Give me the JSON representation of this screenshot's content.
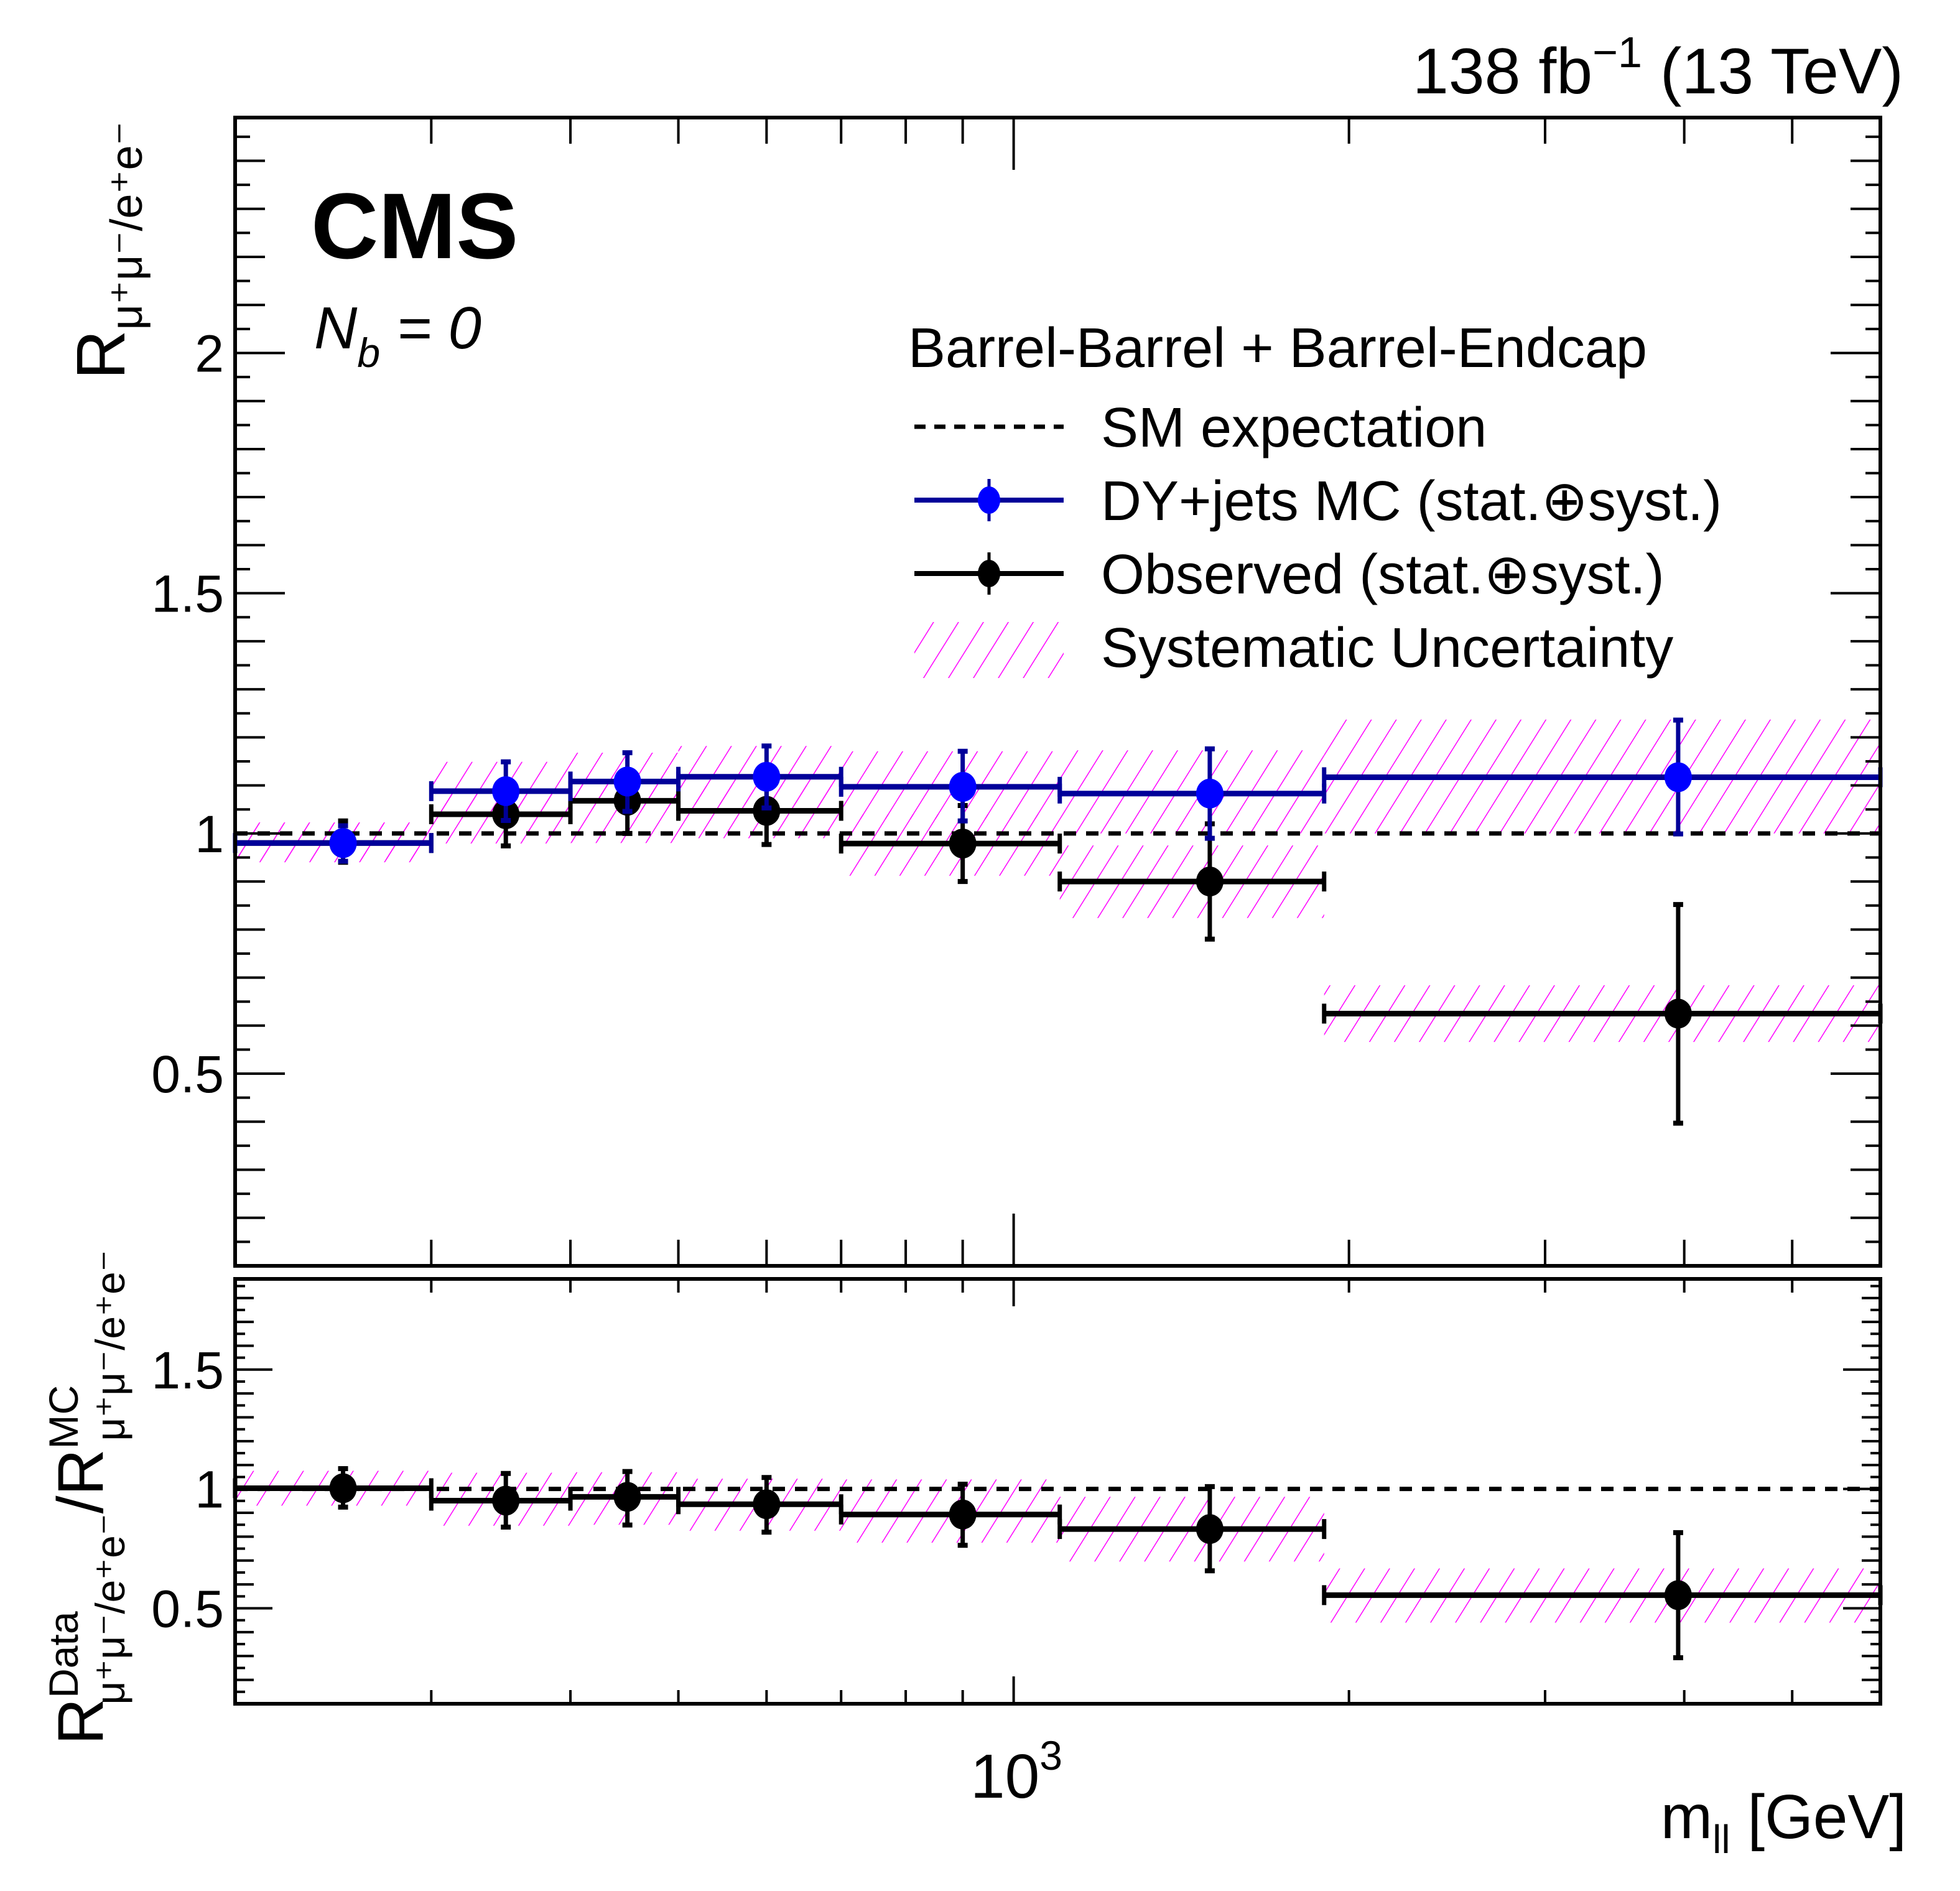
{
  "chart_data": {
    "type": "scatter",
    "title": "",
    "header_right": {
      "lumi": "138 fb",
      "lumi_exp": "−1",
      "energy": " (13 TeV)"
    },
    "experiment_label": "CMS",
    "selection_label": {
      "main": "N",
      "sub": "b",
      "rest": " = 0"
    },
    "xlabel": {
      "main": "m",
      "sub": "ll",
      "unit": " [GeV]"
    },
    "x_scale": "log",
    "xlim": [
      200,
      6000
    ],
    "x_major_tick_label": {
      "base": "10",
      "exp": "3",
      "value": 1000
    },
    "x_minor_ticks": [
      300,
      400,
      500,
      600,
      700,
      800,
      900,
      2000,
      3000,
      4000,
      5000
    ],
    "upper_panel": {
      "ylabel": {
        "main": "R",
        "sub": "μ⁺μ⁻/e⁺e⁻"
      },
      "ylim": [
        0.1,
        2.49
      ],
      "yticks": [
        0.5,
        1,
        1.5,
        2
      ],
      "ytick_labels": [
        "0.5",
        "1",
        "1.5",
        "2"
      ],
      "reference_line": 1.0
    },
    "lower_panel": {
      "ylabel": {
        "num_main": "R",
        "num_sup": "Data",
        "num_sub": "μ⁺μ⁻/e⁺e⁻",
        "den_main": "/R",
        "den_sup": "MC",
        "den_sub": "μ⁺μ⁻/e⁺e⁻"
      },
      "ylim": [
        0.1,
        1.88
      ],
      "yticks": [
        0.5,
        1,
        1.5
      ],
      "ytick_labels": [
        "0.5",
        "1",
        "1.5"
      ],
      "reference_line": 1.0
    },
    "legend": {
      "placement": "top-right",
      "header": "Barrel-Barrel + Barrel-Endcap",
      "entries": [
        {
          "key": "sm",
          "label": "SM expectation",
          "style": "dashed-line"
        },
        {
          "key": "mc",
          "label": "DY+jets MC (stat.⊕syst.)",
          "style": "marker-errorbar",
          "color": "#0000ff"
        },
        {
          "key": "data",
          "label": "Observed (stat.⊕syst.)",
          "style": "marker-errorbar",
          "color": "#000000"
        },
        {
          "key": "syst",
          "label": "Systematic Uncertainty",
          "style": "hatch",
          "color": "#ff00ff"
        }
      ]
    },
    "colors": {
      "mc_marker": "#0000ff",
      "mc_line": "#000099",
      "data": "#000000",
      "hatch": "#ff00ff",
      "sm_line": "#000000"
    },
    "bins": [
      {
        "lo": 200,
        "hi": 300,
        "center": 250
      },
      {
        "lo": 300,
        "hi": 400,
        "center": 350
      },
      {
        "lo": 400,
        "hi": 500,
        "center": 450
      },
      {
        "lo": 500,
        "hi": 700,
        "center": 600
      },
      {
        "lo": 700,
        "hi": 1100,
        "center": 900
      },
      {
        "lo": 1100,
        "hi": 1900,
        "center": 1500
      },
      {
        "lo": 1900,
        "hi": 6000,
        "center": 3950
      }
    ],
    "series": [
      {
        "name": "DY+jets MC (stat.⊕syst.)",
        "panel": "upper",
        "values": [
          0.98,
          1.088,
          1.108,
          1.118,
          1.097,
          1.083,
          1.117
        ],
        "err_up": [
          1.016,
          1.149,
          1.168,
          1.182,
          1.171,
          1.176,
          1.236
        ],
        "err_down": [
          0.942,
          1.027,
          1.046,
          1.053,
          1.026,
          0.99,
          0.999
        ],
        "syst_band_hi": [
          1.023,
          1.149,
          1.168,
          1.182,
          1.171,
          1.173,
          1.237
        ],
        "syst_band_lo": [
          0.94,
          1.03,
          1.05,
          1.06,
          1.03,
          1.0,
          1.0
        ]
      },
      {
        "name": "Observed (stat.⊕syst.)",
        "panel": "upper",
        "values": [
          0.98,
          1.04,
          1.068,
          1.047,
          0.979,
          0.9,
          0.625
        ],
        "err_up": [
          1.026,
          1.09,
          1.13,
          1.11,
          1.058,
          1.02,
          0.852
        ],
        "err_down": [
          0.94,
          0.974,
          1.0,
          0.977,
          0.9,
          0.78,
          0.397
        ],
        "syst_band_hi": [
          1.02,
          1.09,
          1.12,
          1.1,
          1.04,
          0.975,
          0.684
        ],
        "syst_band_lo": [
          0.945,
          0.979,
          0.98,
          0.99,
          0.912,
          0.824,
          0.566
        ]
      },
      {
        "name": "Data/MC ratio",
        "panel": "lower",
        "values": [
          1.003,
          0.951,
          0.967,
          0.936,
          0.893,
          0.832,
          0.555
        ],
        "err_up": [
          1.085,
          1.065,
          1.073,
          1.048,
          1.02,
          1.01,
          0.817
        ],
        "err_down": [
          0.924,
          0.84,
          0.849,
          0.819,
          0.764,
          0.657,
          0.293
        ],
        "syst_band_hi": [
          1.076,
          1.068,
          1.07,
          1.043,
          1.04,
          0.967,
          0.667
        ],
        "syst_band_lo": [
          0.93,
          0.846,
          0.85,
          0.825,
          0.775,
          0.696,
          0.44
        ]
      }
    ]
  }
}
